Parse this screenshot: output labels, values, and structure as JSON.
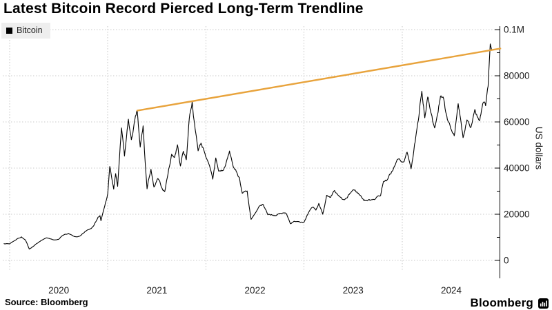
{
  "title": "Latest Bitcoin Record Pierced Long-Term Trendline",
  "legend": {
    "label": "Bitcoin",
    "swatch_color": "#000000"
  },
  "source_label": "Source: Bloomberg",
  "brand": {
    "name": "Bloomberg",
    "icon": "bloomberg-bars-icon"
  },
  "colors": {
    "background": "#ffffff",
    "series": "#000000",
    "trendline": "#E8A33C",
    "grid": "#c9c9c9",
    "axis": "#000000",
    "tick_text": "#1a1a1a",
    "legend_bg": "#eeeeee"
  },
  "y_axis": {
    "label": "US dollars",
    "side": "right",
    "range": [
      0,
      100000
    ],
    "ticks": [
      {
        "label": "0.1M",
        "value": 100000
      },
      {
        "label": "80000",
        "value": 80000
      },
      {
        "label": "60000",
        "value": 60000
      },
      {
        "label": "40000",
        "value": 40000
      },
      {
        "label": "20000",
        "value": 20000
      },
      {
        "label": "0",
        "value": 0
      }
    ],
    "minor_ticks": [
      10000,
      30000,
      50000,
      70000,
      90000
    ]
  },
  "x_axis": {
    "range": [
      2019.93,
      2025.0
    ],
    "gridline_years": [
      2020,
      2021,
      2022,
      2023,
      2024
    ],
    "ticks": [
      {
        "label": "2020",
        "center": 2020.5
      },
      {
        "label": "2021",
        "center": 2021.5
      },
      {
        "label": "2022",
        "center": 2022.5
      },
      {
        "label": "2023",
        "center": 2023.5
      },
      {
        "label": "2024",
        "center": 2024.5
      }
    ]
  },
  "chart_data": {
    "type": "line",
    "title": "Latest Bitcoin Record Pierced Long-Term Trendline",
    "ylabel": "US dollars",
    "ylim": [
      0,
      100000
    ],
    "grid": true,
    "legend_position": "top-left",
    "series": [
      {
        "name": "Bitcoin",
        "color": "#000000",
        "units": "USD",
        "x_units": "decimal_year",
        "points": [
          [
            2019.94,
            7300
          ],
          [
            2020.0,
            7200
          ],
          [
            2020.07,
            9200
          ],
          [
            2020.12,
            10200
          ],
          [
            2020.16,
            8900
          ],
          [
            2020.2,
            4900
          ],
          [
            2020.26,
            6800
          ],
          [
            2020.33,
            8800
          ],
          [
            2020.38,
            9800
          ],
          [
            2020.44,
            9000
          ],
          [
            2020.5,
            9150
          ],
          [
            2020.55,
            11000
          ],
          [
            2020.6,
            11700
          ],
          [
            2020.66,
            10300
          ],
          [
            2020.72,
            10650
          ],
          [
            2020.79,
            13100
          ],
          [
            2020.83,
            13800
          ],
          [
            2020.87,
            16300
          ],
          [
            2020.9,
            18700
          ],
          [
            2020.92,
            19400
          ],
          [
            2020.93,
            17200
          ],
          [
            2020.97,
            23800
          ],
          [
            2021.0,
            29000
          ],
          [
            2021.02,
            40700
          ],
          [
            2021.06,
            30900
          ],
          [
            2021.08,
            37600
          ],
          [
            2021.1,
            32100
          ],
          [
            2021.14,
            57400
          ],
          [
            2021.17,
            45200
          ],
          [
            2021.21,
            61200
          ],
          [
            2021.24,
            52300
          ],
          [
            2021.27,
            59800
          ],
          [
            2021.3,
            64900
          ],
          [
            2021.33,
            49100
          ],
          [
            2021.36,
            58300
          ],
          [
            2021.38,
            43000
          ],
          [
            2021.4,
            31000
          ],
          [
            2021.44,
            39500
          ],
          [
            2021.47,
            31800
          ],
          [
            2021.51,
            35500
          ],
          [
            2021.55,
            31500
          ],
          [
            2021.58,
            29800
          ],
          [
            2021.62,
            39500
          ],
          [
            2021.65,
            46000
          ],
          [
            2021.68,
            44600
          ],
          [
            2021.71,
            50100
          ],
          [
            2021.74,
            40900
          ],
          [
            2021.77,
            47300
          ],
          [
            2021.8,
            43600
          ],
          [
            2021.83,
            61400
          ],
          [
            2021.86,
            68900
          ],
          [
            2021.89,
            56900
          ],
          [
            2021.92,
            47500
          ],
          [
            2021.95,
            50800
          ],
          [
            2021.99,
            46300
          ],
          [
            2022.03,
            41800
          ],
          [
            2022.07,
            35200
          ],
          [
            2022.1,
            44400
          ],
          [
            2022.13,
            38700
          ],
          [
            2022.18,
            39200
          ],
          [
            2022.24,
            47400
          ],
          [
            2022.29,
            39700
          ],
          [
            2022.34,
            36000
          ],
          [
            2022.37,
            29100
          ],
          [
            2022.42,
            30100
          ],
          [
            2022.46,
            17800
          ],
          [
            2022.5,
            20300
          ],
          [
            2022.54,
            23300
          ],
          [
            2022.58,
            24300
          ],
          [
            2022.63,
            19800
          ],
          [
            2022.7,
            19300
          ],
          [
            2022.76,
            20400
          ],
          [
            2022.82,
            20200
          ],
          [
            2022.86,
            15900
          ],
          [
            2022.93,
            16900
          ],
          [
            2023.0,
            16600
          ],
          [
            2023.05,
            21100
          ],
          [
            2023.09,
            23100
          ],
          [
            2023.12,
            21800
          ],
          [
            2023.15,
            24700
          ],
          [
            2023.19,
            20000
          ],
          [
            2023.23,
            28200
          ],
          [
            2023.27,
            27300
          ],
          [
            2023.31,
            30300
          ],
          [
            2023.36,
            27700
          ],
          [
            2023.4,
            26400
          ],
          [
            2023.44,
            27100
          ],
          [
            2023.5,
            30600
          ],
          [
            2023.55,
            29200
          ],
          [
            2023.61,
            25900
          ],
          [
            2023.67,
            26100
          ],
          [
            2023.73,
            26800
          ],
          [
            2023.78,
            28100
          ],
          [
            2023.81,
            34200
          ],
          [
            2023.85,
            35100
          ],
          [
            2023.88,
            37400
          ],
          [
            2023.93,
            41500
          ],
          [
            2023.96,
            43900
          ],
          [
            2024.0,
            42600
          ],
          [
            2024.05,
            46900
          ],
          [
            2024.09,
            39700
          ],
          [
            2024.12,
            48200
          ],
          [
            2024.15,
            57100
          ],
          [
            2024.17,
            62400
          ],
          [
            2024.2,
            73300
          ],
          [
            2024.23,
            61800
          ],
          [
            2024.26,
            70800
          ],
          [
            2024.29,
            64300
          ],
          [
            2024.33,
            57400
          ],
          [
            2024.36,
            63100
          ],
          [
            2024.39,
            71200
          ],
          [
            2024.43,
            68400
          ],
          [
            2024.46,
            61100
          ],
          [
            2024.5,
            56700
          ],
          [
            2024.53,
            54000
          ],
          [
            2024.57,
            67900
          ],
          [
            2024.62,
            53200
          ],
          [
            2024.66,
            60900
          ],
          [
            2024.7,
            57700
          ],
          [
            2024.74,
            65400
          ],
          [
            2024.79,
            60600
          ],
          [
            2024.82,
            67800
          ],
          [
            2024.85,
            67000
          ],
          [
            2024.875,
            75500
          ],
          [
            2024.89,
            88000
          ],
          [
            2024.897,
            93800
          ],
          [
            2024.912,
            91200
          ]
        ]
      },
      {
        "name": "Long-term trendline",
        "color": "#E8A33C",
        "units": "USD",
        "x_units": "decimal_year",
        "points": [
          [
            2021.3,
            64900
          ],
          [
            2025.0,
            91800
          ]
        ]
      }
    ]
  }
}
